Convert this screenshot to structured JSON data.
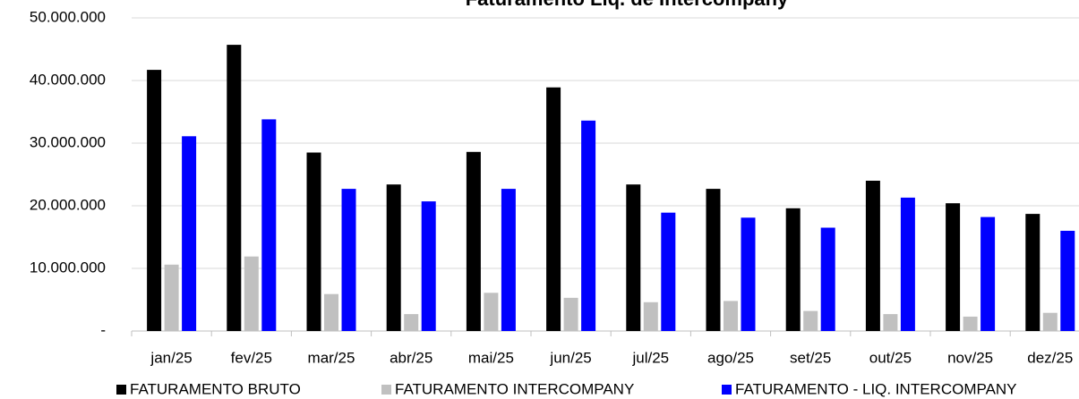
{
  "chart_data": {
    "type": "bar",
    "title": "Faturamento Liq. de Intercompany",
    "categories": [
      "jan/25",
      "fev/25",
      "mar/25",
      "abr/25",
      "mai/25",
      "jun/25",
      "jul/25",
      "ago/25",
      "set/25",
      "out/25",
      "nov/25",
      "dez/25"
    ],
    "series": [
      {
        "name": "FATURAMENTO BRUTO",
        "color": "#000000",
        "values": [
          41700000,
          45700000,
          28500000,
          23400000,
          28600000,
          38900000,
          23400000,
          22700000,
          19600000,
          24000000,
          20400000,
          18700000
        ]
      },
      {
        "name": "FATURAMENTO INTERCOMPANY",
        "color": "#c0c0c0",
        "values": [
          10600000,
          11900000,
          5900000,
          2700000,
          6100000,
          5300000,
          4600000,
          4800000,
          3200000,
          2700000,
          2300000,
          2900000
        ]
      },
      {
        "name": "FATURAMENTO - LIQ. INTERCOMPANY",
        "color": "#0000ff",
        "values": [
          31100000,
          33800000,
          22700000,
          20700000,
          22700000,
          33600000,
          18900000,
          18100000,
          16500000,
          21300000,
          18200000,
          16000000
        ]
      }
    ],
    "ylim": [
      0,
      50000000
    ],
    "yticks": [
      {
        "value": 0,
        "label": "-"
      },
      {
        "value": 10000000,
        "label": "10.000.000"
      },
      {
        "value": 20000000,
        "label": "20.000.000"
      },
      {
        "value": 30000000,
        "label": "30.000.000"
      },
      {
        "value": 40000000,
        "label": "40.000.000"
      },
      {
        "value": 50000000,
        "label": "50.000.000"
      }
    ],
    "grid": true,
    "legend": "bottom"
  }
}
